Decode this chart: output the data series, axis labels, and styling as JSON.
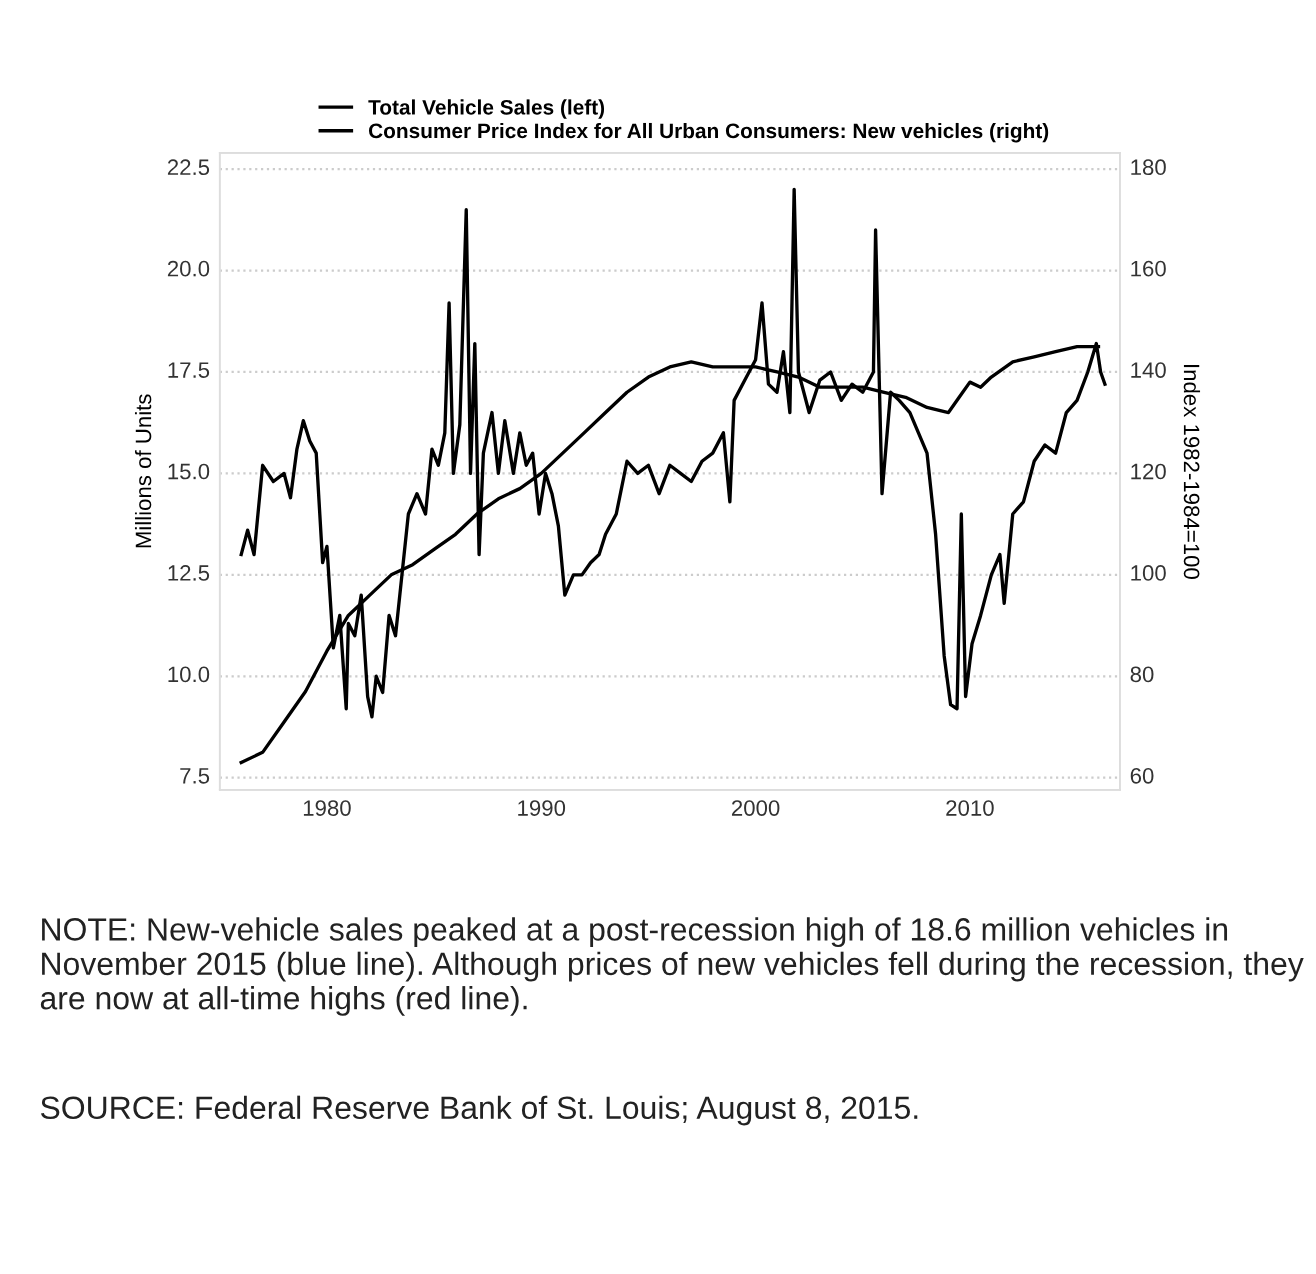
{
  "chart_data": {
    "type": "line",
    "xlabel": null,
    "ylabel": "Millions of Units",
    "y2label": "Index 1982-1984=100",
    "xlim": [
      1975,
      2017
    ],
    "xticks": [
      1980,
      1990,
      2000,
      2010
    ],
    "ylim": [
      7.2,
      22.9
    ],
    "yticks": [
      {
        "value": 7.5,
        "label": "7.5"
      },
      {
        "value": 10,
        "label": "10.0"
      },
      {
        "value": 12.5,
        "label": "12.5"
      },
      {
        "value": 15,
        "label": "15.0"
      },
      {
        "value": 17.5,
        "label": "17.5"
      },
      {
        "value": 20,
        "label": "20.0"
      },
      {
        "value": 22.5,
        "label": "22.5"
      }
    ],
    "y2lim": [
      57.6,
      183.2
    ],
    "y2ticks": [
      60,
      80,
      100,
      120,
      140,
      160,
      180
    ],
    "grid": "y",
    "legend": "top",
    "line_style": "solid",
    "marker": "none",
    "series": [
      {
        "name": "Total Vehicle Sales (left)",
        "color": "#000000",
        "x": [
          1976.0,
          1976.3,
          1976.6,
          1977.0,
          1977.5,
          1978.0,
          1978.3,
          1978.6,
          1978.9,
          1979.2,
          1979.5,
          1979.8,
          1980.0,
          1980.3,
          1980.6,
          1980.9,
          1981.0,
          1981.3,
          1981.6,
          1981.9,
          1982.1,
          1982.3,
          1982.6,
          1982.9,
          1983.2,
          1983.5,
          1983.8,
          1984.2,
          1984.6,
          1984.9,
          1985.2,
          1985.5,
          1985.7,
          1985.9,
          1986.2,
          1986.5,
          1986.7,
          1986.9,
          1987.1,
          1987.3,
          1987.7,
          1988.0,
          1988.3,
          1988.7,
          1989.0,
          1989.3,
          1989.6,
          1989.9,
          1990.2,
          1990.5,
          1990.8,
          1991.1,
          1991.5,
          1991.9,
          1992.3,
          1992.7,
          1993.0,
          1993.5,
          1994.0,
          1994.5,
          1995.0,
          1995.5,
          1996.0,
          1996.5,
          1997.0,
          1997.5,
          1998.0,
          1998.5,
          1998.8,
          1999.0,
          1999.5,
          2000.0,
          2000.3,
          2000.6,
          2001.0,
          2001.3,
          2001.6,
          2001.8,
          2002.0,
          2002.5,
          2003.0,
          2003.5,
          2004.0,
          2004.5,
          2005.0,
          2005.5,
          2005.6,
          2005.9,
          2006.3,
          2006.7,
          2007.2,
          2007.6,
          2008.0,
          2008.4,
          2008.8,
          2009.1,
          2009.4,
          2009.6,
          2009.8,
          2010.1,
          2010.5,
          2011.0,
          2011.4,
          2011.6,
          2012.0,
          2012.5,
          2013.0,
          2013.5,
          2014.0,
          2014.5,
          2015.0,
          2015.5,
          2015.9,
          2016.1,
          2016.3
        ],
        "values": [
          13.0,
          13.6,
          13.0,
          15.2,
          14.8,
          15.0,
          14.4,
          15.6,
          16.3,
          15.8,
          15.5,
          12.8,
          13.2,
          10.7,
          11.5,
          9.2,
          11.3,
          11.0,
          12.0,
          9.5,
          9.0,
          10.0,
          9.6,
          11.5,
          11.0,
          12.5,
          14.0,
          14.5,
          14.0,
          15.6,
          15.2,
          16.0,
          19.2,
          15.0,
          16.2,
          21.5,
          15.0,
          18.2,
          13.0,
          15.5,
          16.5,
          15.0,
          16.3,
          15.0,
          16.0,
          15.2,
          15.5,
          14.0,
          15.0,
          14.5,
          13.7,
          12.0,
          12.5,
          12.5,
          12.8,
          13.0,
          13.5,
          14.0,
          15.3,
          15.0,
          15.2,
          14.5,
          15.2,
          15.0,
          14.8,
          15.3,
          15.5,
          16.0,
          14.3,
          16.8,
          17.3,
          17.8,
          19.2,
          17.2,
          17.0,
          18.0,
          16.5,
          22.0,
          17.5,
          16.5,
          17.3,
          17.5,
          16.8,
          17.2,
          17.0,
          17.5,
          21.0,
          14.5,
          17.0,
          16.8,
          16.5,
          16.0,
          15.5,
          13.5,
          10.5,
          9.3,
          9.2,
          14.0,
          9.5,
          10.8,
          11.5,
          12.5,
          13.0,
          11.8,
          14.0,
          14.3,
          15.3,
          15.7,
          15.5,
          16.5,
          16.8,
          17.5,
          18.2,
          17.5,
          17.2
        ]
      },
      {
        "name": "Consumer Price Index for All Urban Consumers: New vehicles (right)",
        "color": "#000000",
        "axis": "y2",
        "x": [
          1976,
          1977,
          1978,
          1979,
          1980,
          1981,
          1982,
          1983,
          1984,
          1985,
          1986,
          1987,
          1988,
          1989,
          1990,
          1991,
          1992,
          1993,
          1994,
          1995,
          1996,
          1997,
          1998,
          1999,
          2000,
          2001,
          2002,
          2003,
          2004,
          2005,
          2006,
          2007,
          2008,
          2009,
          2009.5,
          2010,
          2010.5,
          2011,
          2012,
          2013,
          2014,
          2015,
          2016
        ],
        "values": [
          63,
          65,
          71,
          77,
          85,
          92,
          96,
          100,
          102,
          105,
          108,
          112,
          115,
          117,
          120,
          124,
          128,
          132,
          136,
          139,
          141,
          142,
          141,
          141,
          141,
          140,
          139,
          137,
          137,
          137,
          136,
          135,
          133,
          132,
          135,
          138,
          137,
          139,
          142,
          143,
          144,
          145,
          145
        ]
      }
    ],
    "annotations": [
      "NOTE: New-vehicle sales peaked at a post-recession high of 18.6 million vehicles in November 2015 (blue line). Although prices of new vehicles fell during the recession, they are now at all-time highs (red line).",
      "SOURCE: Federal Reserve Bank of St. Louis; August 8, 2015."
    ]
  }
}
